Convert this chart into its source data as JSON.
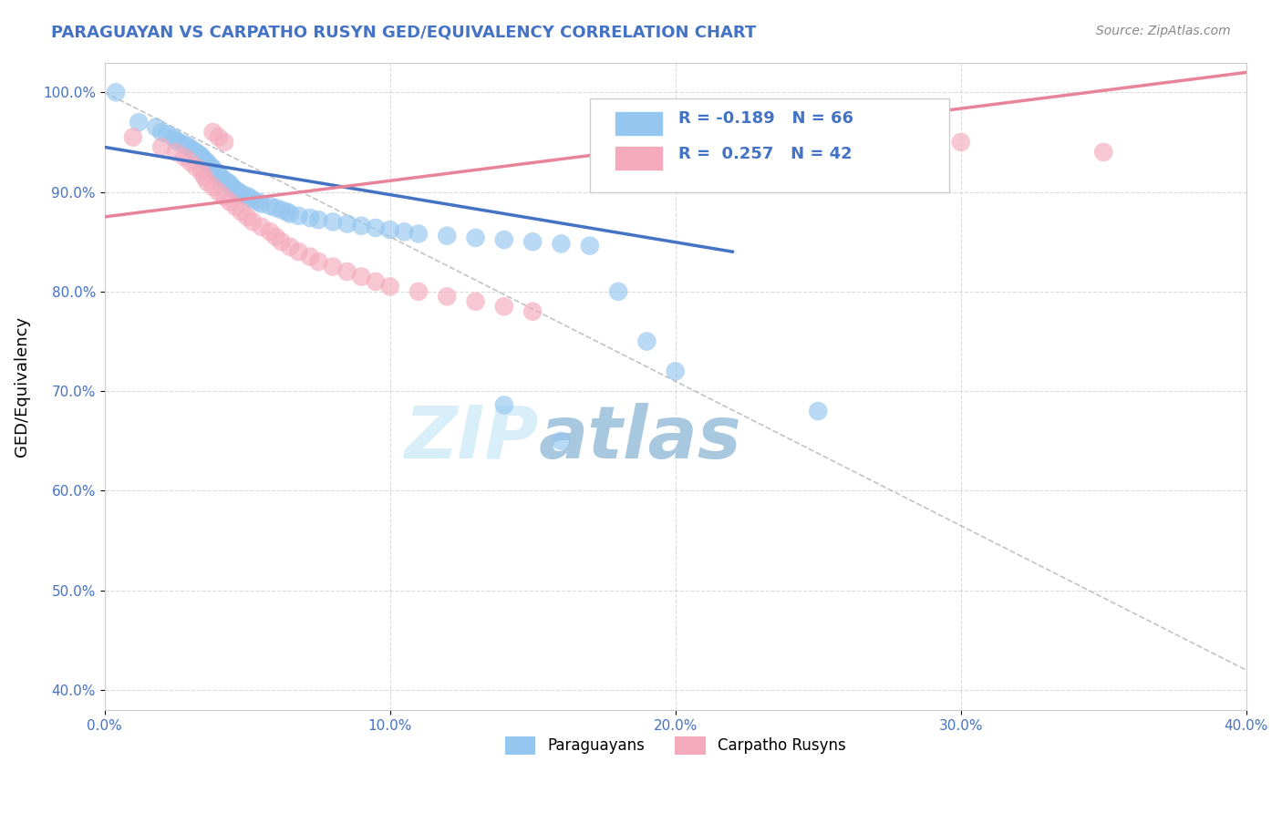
{
  "title": "PARAGUAYAN VS CARPATHO RUSYN GED/EQUIVALENCY CORRELATION CHART",
  "source": "Source: ZipAtlas.com",
  "ylabel": "GED/Equivalency",
  "xlim": [
    0.0,
    0.4
  ],
  "ylim": [
    0.38,
    1.03
  ],
  "x_ticks": [
    0.0,
    0.1,
    0.2,
    0.3,
    0.4
  ],
  "x_tick_labels": [
    "0.0%",
    "10.0%",
    "20.0%",
    "30.0%",
    "40.0%"
  ],
  "y_ticks": [
    0.4,
    0.5,
    0.6,
    0.7,
    0.8,
    0.9,
    1.0
  ],
  "y_tick_labels": [
    "40.0%",
    "50.0%",
    "60.0%",
    "70.0%",
    "80.0%",
    "90.0%",
    "100.0%"
  ],
  "legend_labels": [
    "Paraguayans",
    "Carpatho Rusyns"
  ],
  "legend_R": [
    -0.189,
    0.257
  ],
  "legend_N": [
    66,
    42
  ],
  "blue_color": "#94C6F0",
  "blue_line_color": "#4472C4",
  "pink_color": "#F4AABC",
  "pink_line_color": "#E8849A",
  "legend_text_color": "#4472C4",
  "title_color": "#4472C4",
  "source_color": "#888888",
  "watermark_light": "#D8EEF8",
  "watermark_dark": "#A8C8E0",
  "grid_color": "#CCCCCC",
  "blue_scatter_x": [
    0.004,
    0.012,
    0.018,
    0.02,
    0.022,
    0.024,
    0.025,
    0.026,
    0.028,
    0.029,
    0.03,
    0.031,
    0.032,
    0.033,
    0.034,
    0.034,
    0.035,
    0.036,
    0.036,
    0.037,
    0.038,
    0.038,
    0.039,
    0.04,
    0.04,
    0.041,
    0.042,
    0.043,
    0.044,
    0.044,
    0.045,
    0.046,
    0.047,
    0.048,
    0.05,
    0.051,
    0.052,
    0.054,
    0.055,
    0.058,
    0.06,
    0.062,
    0.064,
    0.065,
    0.068,
    0.072,
    0.075,
    0.08,
    0.085,
    0.09,
    0.095,
    0.1,
    0.105,
    0.11,
    0.12,
    0.13,
    0.14,
    0.15,
    0.16,
    0.17,
    0.18,
    0.19,
    0.2,
    0.25,
    0.14,
    0.16
  ],
  "blue_scatter_y": [
    1.0,
    0.97,
    0.965,
    0.96,
    0.958,
    0.955,
    0.952,
    0.95,
    0.948,
    0.946,
    0.944,
    0.942,
    0.94,
    0.938,
    0.936,
    0.934,
    0.932,
    0.93,
    0.928,
    0.926,
    0.924,
    0.922,
    0.92,
    0.918,
    0.916,
    0.914,
    0.912,
    0.91,
    0.908,
    0.906,
    0.904,
    0.902,
    0.9,
    0.898,
    0.896,
    0.894,
    0.892,
    0.89,
    0.888,
    0.886,
    0.884,
    0.882,
    0.88,
    0.878,
    0.876,
    0.874,
    0.872,
    0.87,
    0.868,
    0.866,
    0.864,
    0.862,
    0.86,
    0.858,
    0.856,
    0.854,
    0.852,
    0.85,
    0.848,
    0.846,
    0.8,
    0.75,
    0.72,
    0.68,
    0.686,
    0.65
  ],
  "pink_scatter_x": [
    0.01,
    0.02,
    0.025,
    0.028,
    0.03,
    0.032,
    0.034,
    0.035,
    0.036,
    0.038,
    0.04,
    0.042,
    0.044,
    0.046,
    0.048,
    0.05,
    0.052,
    0.055,
    0.058,
    0.06,
    0.062,
    0.065,
    0.068,
    0.072,
    0.075,
    0.08,
    0.085,
    0.09,
    0.095,
    0.1,
    0.11,
    0.12,
    0.13,
    0.14,
    0.15,
    0.2,
    0.25,
    0.3,
    0.35,
    0.038,
    0.04,
    0.042
  ],
  "pink_scatter_y": [
    0.955,
    0.945,
    0.94,
    0.935,
    0.93,
    0.925,
    0.92,
    0.915,
    0.91,
    0.905,
    0.9,
    0.895,
    0.89,
    0.885,
    0.88,
    0.875,
    0.87,
    0.865,
    0.86,
    0.855,
    0.85,
    0.845,
    0.84,
    0.835,
    0.83,
    0.825,
    0.82,
    0.815,
    0.81,
    0.805,
    0.8,
    0.795,
    0.79,
    0.785,
    0.78,
    0.97,
    0.96,
    0.95,
    0.94,
    0.96,
    0.955,
    0.95
  ],
  "blue_line_x": [
    0.0,
    0.22
  ],
  "blue_line_y": [
    0.945,
    0.84
  ],
  "pink_line_x": [
    0.0,
    0.4
  ],
  "pink_line_y": [
    0.875,
    1.02
  ],
  "diag_line_x": [
    0.0,
    0.4
  ],
  "diag_line_y": [
    1.0,
    0.42
  ]
}
